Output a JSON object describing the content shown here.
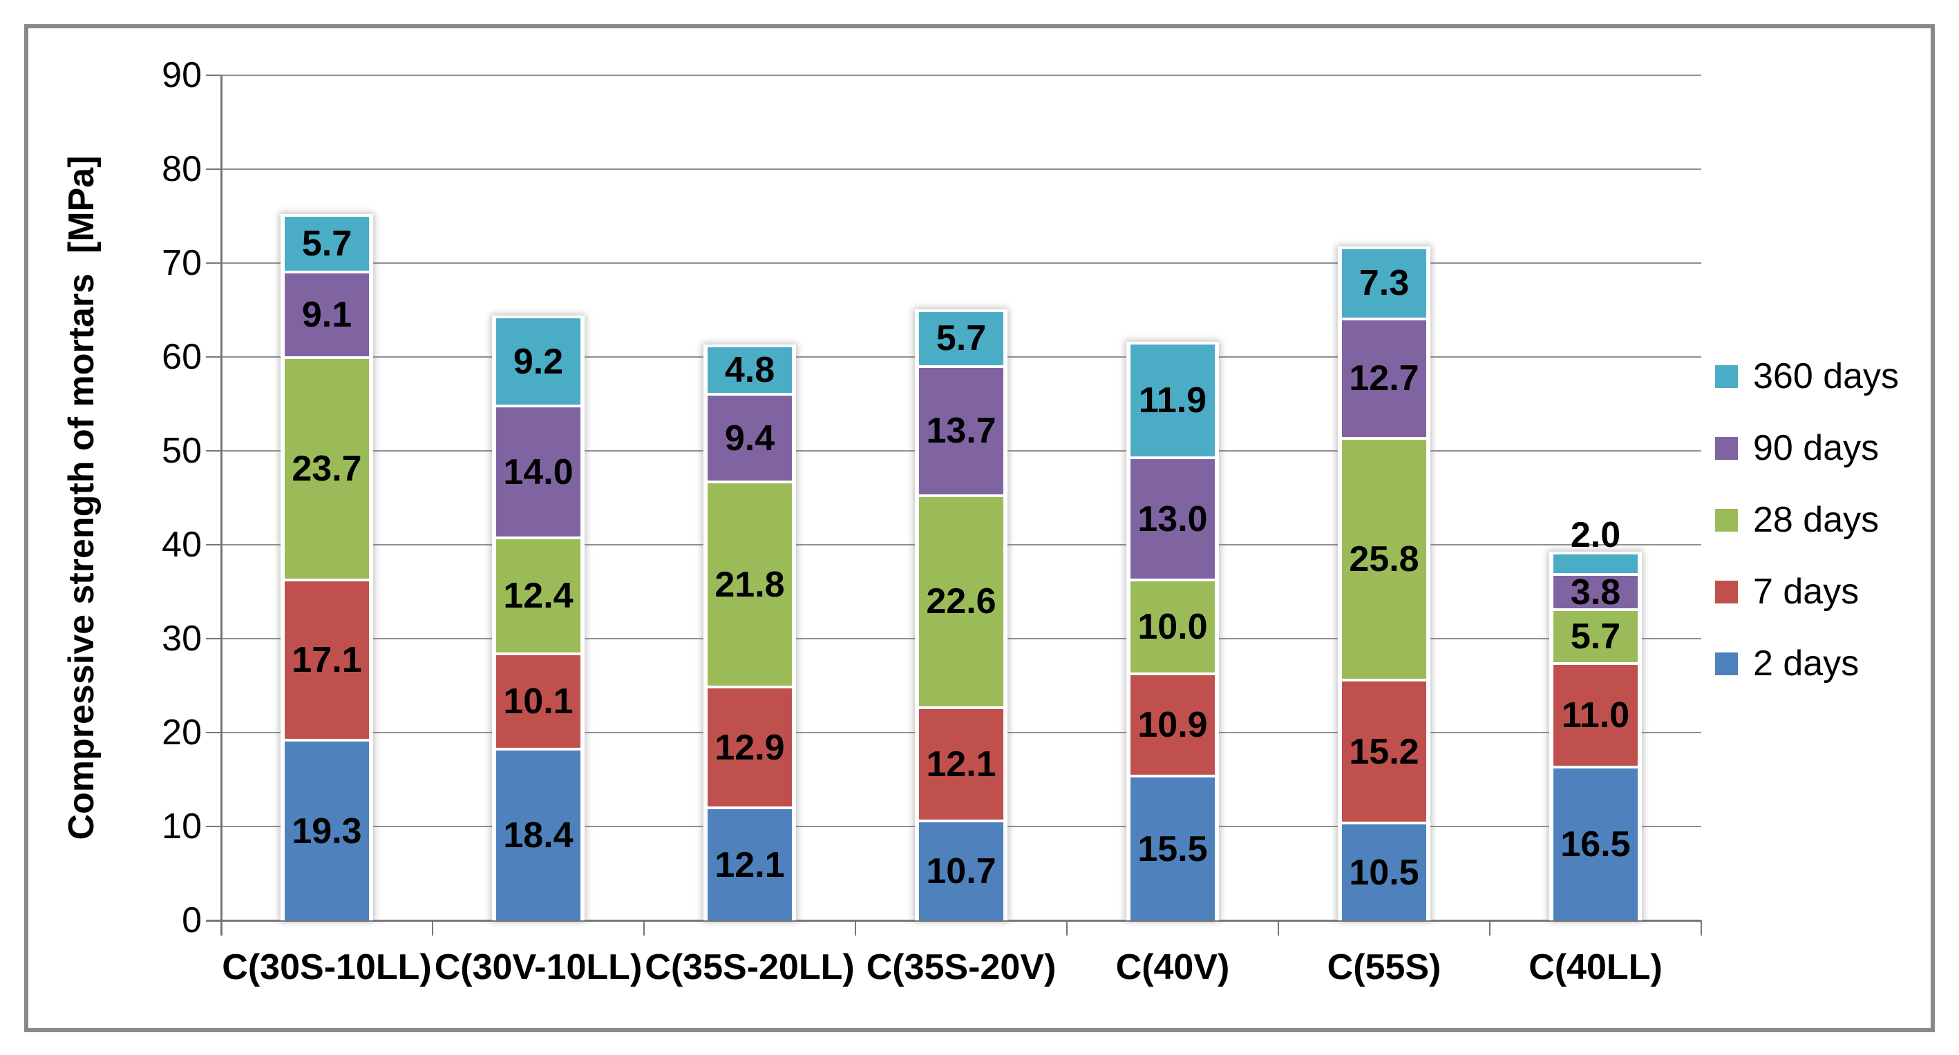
{
  "window": {
    "background": "#ffffff",
    "frame_border_color": "#898989"
  },
  "chart_data": {
    "type": "bar",
    "variant": "stacked-column",
    "title": "",
    "xlabel": "",
    "ylabel": "Compressive strength of mortars  [MPa]",
    "categories": [
      "C(30S-10LL)",
      "C(30V-10LL)",
      "C(35S-20LL)",
      "C(35S-20V)",
      "C(40V)",
      "C(55S)",
      "C(40LL)"
    ],
    "series": [
      {
        "name": "2 days",
        "color": "#4F81BD",
        "values": [
          19.3,
          18.4,
          12.1,
          10.7,
          15.5,
          10.5,
          16.5
        ]
      },
      {
        "name": "7 days",
        "color": "#C0504D",
        "values": [
          17.1,
          10.1,
          12.9,
          12.1,
          10.9,
          15.2,
          11.0
        ]
      },
      {
        "name": "28 days",
        "color": "#9BBB59",
        "values": [
          23.7,
          12.4,
          21.8,
          22.6,
          10.0,
          25.8,
          5.7
        ]
      },
      {
        "name": "90 days",
        "color": "#8064A2",
        "values": [
          9.1,
          14.0,
          9.4,
          13.7,
          13.0,
          12.7,
          3.8
        ]
      },
      {
        "name": "360 days",
        "color": "#4BACC6",
        "values": [
          5.7,
          9.2,
          4.8,
          5.7,
          11.9,
          7.3,
          2.0
        ]
      }
    ],
    "stack_order_bottom_to_top": [
      "2 days",
      "7 days",
      "28 days",
      "90 days",
      "360 days"
    ],
    "data_labels": true,
    "data_label_decimals": 1,
    "ylim": [
      0,
      90
    ],
    "ytick_step": 10,
    "yticks": [
      0,
      10,
      20,
      30,
      40,
      50,
      60,
      70,
      80,
      90
    ],
    "grid": true,
    "gridline_color": "#8f8f8f",
    "axis_color": "#767676",
    "text_color": "#000000",
    "legend_position": "right",
    "legend_order_top_to_bottom": [
      "360 days",
      "90 days",
      "28 days",
      "7 days",
      "2 days"
    ]
  }
}
